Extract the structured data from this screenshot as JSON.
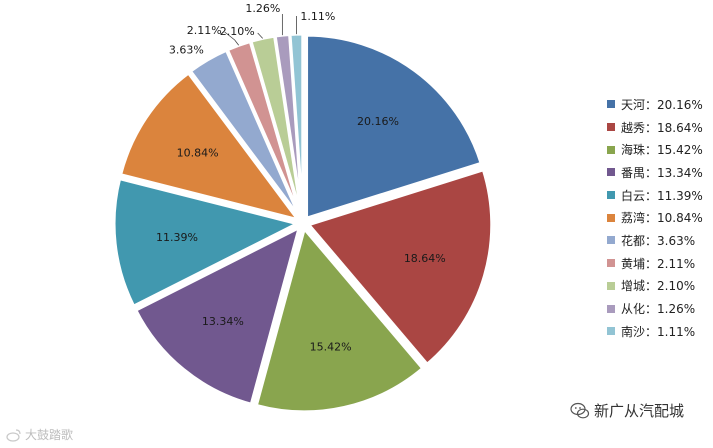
{
  "chart_data": {
    "type": "pie",
    "slices": [
      {
        "label": "天河",
        "value": 20.16,
        "text": "20.16%",
        "legend": "天河：20.16%",
        "color": "#4572a7"
      },
      {
        "label": "越秀",
        "value": 18.64,
        "text": "18.64%",
        "legend": "越秀：18.64%",
        "color": "#aa4643"
      },
      {
        "label": "海珠",
        "value": 15.42,
        "text": "15.42%",
        "legend": "海珠：15.42%",
        "color": "#89a54e"
      },
      {
        "label": "番禺",
        "value": 13.34,
        "text": "13.34%",
        "legend": "番禺：13.34%",
        "color": "#71588f"
      },
      {
        "label": "白云",
        "value": 11.39,
        "text": "11.39%",
        "legend": "白云：11.39%",
        "color": "#4198af"
      },
      {
        "label": "荔湾",
        "value": 10.84,
        "text": "10.84%",
        "legend": "荔湾：10.84%",
        "color": "#db843d"
      },
      {
        "label": "花都",
        "value": 3.63,
        "text": "3.63%",
        "legend": "花都：3.63%",
        "color": "#93a9cf"
      },
      {
        "label": "黄埔",
        "value": 2.11,
        "text": "2.11%",
        "legend": "黄埔：2.11%",
        "color": "#d19392"
      },
      {
        "label": "增城",
        "value": 2.1,
        "text": "2.10%",
        "legend": "增城：2.10%",
        "color": "#b9cd96"
      },
      {
        "label": "从化",
        "value": 1.26,
        "text": "1.26%",
        "legend": "从化：1.26%",
        "color": "#a99bbd"
      },
      {
        "label": "南沙",
        "value": 1.11,
        "text": "1.11%",
        "legend": "南沙：1.11%",
        "color": "#92c4d4"
      }
    ],
    "legend_position": "right"
  },
  "watermarks": {
    "right_text": "新广从汽配城",
    "right_icon": "wechat-icon",
    "left_text": "大鼓踏歌",
    "left_icon": "weibo-icon"
  }
}
